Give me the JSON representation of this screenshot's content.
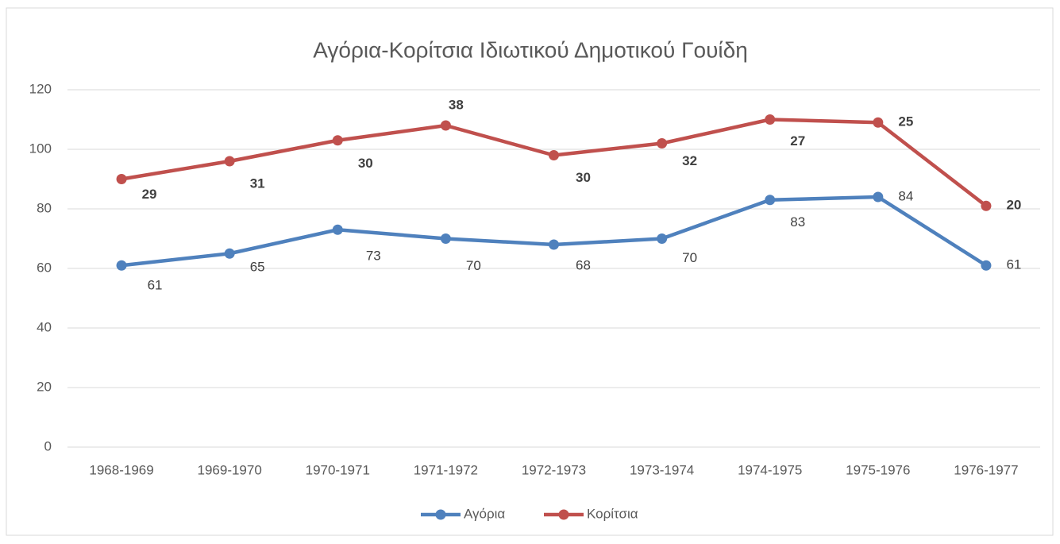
{
  "chart_data": {
    "type": "line",
    "stacked": true,
    "title": "Αγόρια-Κορίτσια Ιδιωτικού Δημοτικού Γουίδη",
    "categories": [
      "1968-1969",
      "1969-1970",
      "1970-1971",
      "1971-1972",
      "1972-1973",
      "1973-1974",
      "1974-1975",
      "1975-1976",
      "1976-1977"
    ],
    "series": [
      {
        "name": "Αγόρια",
        "color": "#4f81bd",
        "values": [
          61,
          65,
          73,
          70,
          68,
          70,
          83,
          84,
          61
        ]
      },
      {
        "name": "Κορίτσια",
        "color": "#c0504d",
        "values": [
          29,
          31,
          30,
          38,
          30,
          32,
          27,
          25,
          20
        ]
      }
    ],
    "ylim": [
      0,
      120
    ],
    "yticks": [
      0,
      20,
      40,
      60,
      80,
      100,
      120
    ],
    "grid": true,
    "legend": "bottom"
  }
}
